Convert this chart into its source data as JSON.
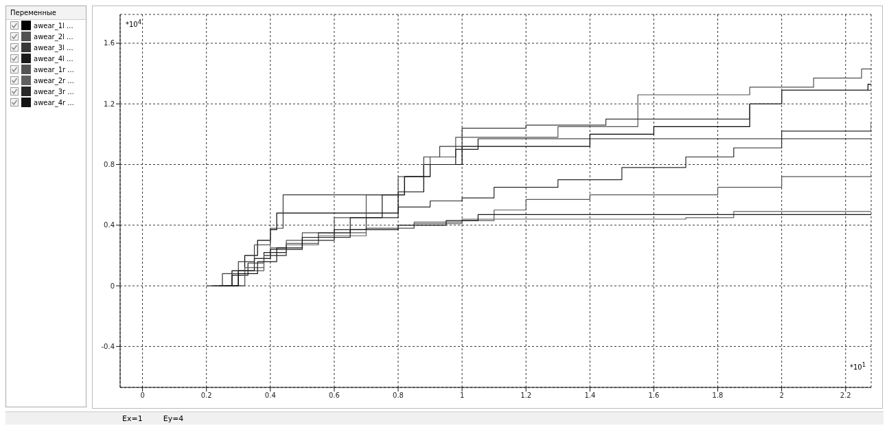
{
  "chart_data": {
    "type": "step",
    "xlabel": "*10$^{1}$",
    "ylabel": "*10$^{4}$",
    "legend_title": "Переменные",
    "legend": "left",
    "grid": true,
    "line_style": "solid",
    "xlim": [
      -0.07,
      2.28
    ],
    "ylim": [
      -0.67,
      1.79
    ],
    "xticks": [
      0,
      0.2,
      0.4,
      0.6,
      0.8,
      1,
      1.2,
      1.4,
      1.6,
      1.8,
      2,
      2.2
    ],
    "yticks": [
      -0.4,
      0,
      0.4,
      0.8,
      1.2,
      1.6
    ],
    "annotations": [
      "Ex=1",
      "Ey=4"
    ],
    "series": [
      {
        "name": "awear_1l ...",
        "color": "#000000",
        "x": [
          0.22,
          0.28,
          0.32,
          0.36,
          0.4,
          0.42,
          0.75,
          0.8,
          0.88,
          1.0,
          1.4,
          1.6,
          1.9,
          2.0,
          2.27,
          2.28
        ],
        "values": [
          0,
          0.1,
          0.2,
          0.3,
          0.37,
          0.48,
          0.48,
          0.62,
          0.8,
          0.92,
          1.0,
          1.05,
          1.2,
          1.29,
          1.33,
          1.33
        ]
      },
      {
        "name": "awear_2l ...",
        "color": "#505050",
        "x": [
          0.25,
          0.3,
          0.35,
          0.4,
          0.45,
          0.5,
          0.6,
          0.7,
          0.8,
          0.9,
          0.98,
          1.3,
          1.55,
          1.9,
          2.1,
          2.25,
          2.28
        ],
        "values": [
          0,
          0.1,
          0.18,
          0.25,
          0.3,
          0.35,
          0.45,
          0.6,
          0.72,
          0.85,
          0.98,
          1.05,
          1.26,
          1.31,
          1.37,
          1.43,
          1.43
        ]
      },
      {
        "name": "awear_3l ...",
        "color": "#383838",
        "x": [
          0.2,
          0.25,
          0.3,
          0.35,
          0.4,
          0.44,
          0.75,
          0.82,
          0.88,
          0.93,
          1.0,
          1.2,
          1.45,
          1.9,
          2.0,
          2.28
        ],
        "values": [
          0,
          0.08,
          0.16,
          0.27,
          0.38,
          0.6,
          0.6,
          0.72,
          0.85,
          0.92,
          1.04,
          1.06,
          1.1,
          1.2,
          1.29,
          1.29
        ]
      },
      {
        "name": "awear_4l ...",
        "color": "#1a1a1a",
        "x": [
          0.24,
          0.28,
          0.33,
          0.38,
          0.45,
          0.55,
          0.65,
          0.75,
          0.82,
          0.9,
          0.98,
          1.05,
          2.28
        ],
        "values": [
          0,
          0.07,
          0.15,
          0.22,
          0.27,
          0.35,
          0.45,
          0.6,
          0.72,
          0.8,
          0.9,
          0.97,
          0.97
        ]
      },
      {
        "name": "awear_1r ...",
        "color": "#555555",
        "x": [
          0.26,
          0.32,
          0.38,
          0.45,
          0.55,
          0.7,
          0.85,
          1.0,
          1.1,
          1.2,
          1.4,
          1.8,
          2.0,
          2.28
        ],
        "values": [
          0,
          0.1,
          0.2,
          0.28,
          0.35,
          0.38,
          0.42,
          0.43,
          0.5,
          0.57,
          0.6,
          0.65,
          0.72,
          0.74
        ]
      },
      {
        "name": "awear_2r ...",
        "color": "#606060",
        "x": [
          0.27,
          0.32,
          0.38,
          0.45,
          0.55,
          0.7,
          0.85,
          1.0,
          1.7,
          1.85,
          2.28
        ],
        "values": [
          0,
          0.12,
          0.2,
          0.27,
          0.33,
          0.38,
          0.41,
          0.44,
          0.45,
          0.49,
          0.49
        ]
      },
      {
        "name": "awear_3r ...",
        "color": "#282828",
        "x": [
          0.25,
          0.3,
          0.35,
          0.4,
          0.5,
          0.6,
          0.7,
          0.8,
          0.9,
          1.0,
          1.1,
          1.3,
          1.5,
          1.7,
          1.85,
          2.0,
          2.28
        ],
        "values": [
          0,
          0.1,
          0.18,
          0.24,
          0.3,
          0.37,
          0.45,
          0.52,
          0.56,
          0.58,
          0.65,
          0.7,
          0.78,
          0.85,
          0.91,
          1.02,
          1.08
        ]
      },
      {
        "name": "awear_4r ...",
        "color": "#141414",
        "x": [
          0.26,
          0.3,
          0.36,
          0.42,
          0.5,
          0.65,
          0.8,
          0.95,
          1.05,
          2.28
        ],
        "values": [
          0,
          0.08,
          0.16,
          0.25,
          0.32,
          0.37,
          0.4,
          0.43,
          0.47,
          0.47
        ]
      }
    ]
  }
}
